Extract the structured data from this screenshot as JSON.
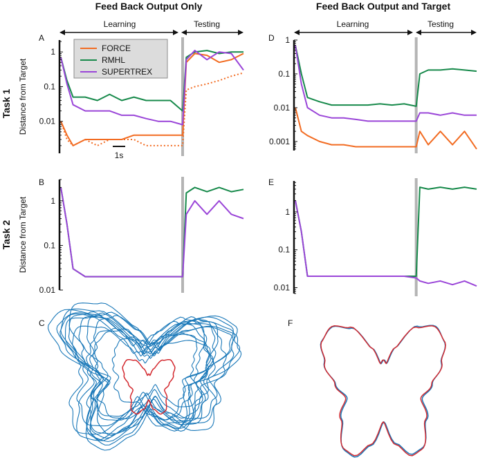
{
  "titles": {
    "left": "Feed Back Output Only",
    "right": "Feed Back Output and Target"
  },
  "rows": {
    "task1": "Task 1",
    "task2": "Task 2"
  },
  "phases": {
    "learning": "Learning",
    "testing": "Testing"
  },
  "ylabel": "Distance from Target",
  "scale_bar": "1s",
  "legend": [
    "FORCE",
    "RMHL",
    "SUPERTREX"
  ],
  "colors": {
    "FORCE": "#f26b21",
    "RMHL": "#16894a",
    "SUPERTREX": "#9a45d8",
    "target": "#d3282e",
    "output": "#1877b8",
    "divider": "#b4b4b4"
  },
  "chart_data": [
    {
      "panel": "A",
      "type": "line",
      "yscale": "log",
      "ylim": [
        0.0012,
        2.2
      ],
      "xlim": [
        0,
        15
      ],
      "yticks": [
        "1",
        "0.1",
        "0.01"
      ],
      "ytick_values": [
        1,
        0.1,
        0.01
      ],
      "phase_boundary": 10,
      "x": [
        0,
        0.5,
        1,
        2,
        3,
        4,
        5,
        6,
        7,
        8,
        9,
        10,
        10.3,
        11,
        12,
        13,
        14,
        15
      ],
      "series": [
        {
          "name": "FORCE",
          "values": [
            0.01,
            0.004,
            0.002,
            0.003,
            0.003,
            0.003,
            0.003,
            0.004,
            0.004,
            0.004,
            0.004,
            0.004,
            0.5,
            0.9,
            0.8,
            0.5,
            0.6,
            0.9
          ]
        },
        {
          "name": "FORCE",
          "style": "dotted",
          "values": [
            0.01,
            0.003,
            0.002,
            0.003,
            0.002,
            0.003,
            0.003,
            0.003,
            0.002,
            0.002,
            0.002,
            0.002,
            0.08,
            0.1,
            0.12,
            0.15,
            0.2,
            0.25
          ]
        },
        {
          "name": "RMHL",
          "values": [
            0.7,
            0.15,
            0.05,
            0.05,
            0.04,
            0.06,
            0.04,
            0.05,
            0.04,
            0.04,
            0.04,
            0.02,
            0.7,
            1.0,
            1.1,
            0.9,
            1.0,
            1.0
          ]
        },
        {
          "name": "SUPERTREX",
          "values": [
            0.7,
            0.12,
            0.03,
            0.02,
            0.02,
            0.02,
            0.015,
            0.015,
            0.012,
            0.01,
            0.01,
            0.008,
            0.6,
            1.1,
            0.6,
            1.0,
            0.9,
            0.3
          ]
        }
      ]
    },
    {
      "panel": "B",
      "type": "line",
      "yscale": "log",
      "ylim": [
        0.01,
        3
      ],
      "xlim": [
        0,
        15
      ],
      "yticks": [
        "1",
        "0.1",
        "0.01"
      ],
      "ytick_values": [
        1,
        0.1,
        0.01
      ],
      "phase_boundary": 10,
      "x": [
        0,
        0.5,
        1,
        2,
        3,
        4,
        5,
        6,
        7,
        8,
        9,
        10,
        10.3,
        11,
        12,
        13,
        14,
        15
      ],
      "series": [
        {
          "name": "RMHL",
          "values": [
            2,
            0.3,
            0.03,
            0.02,
            0.02,
            0.02,
            0.02,
            0.02,
            0.02,
            0.02,
            0.02,
            0.02,
            1.5,
            2,
            1.6,
            2,
            1.6,
            1.8
          ]
        },
        {
          "name": "SUPERTREX",
          "values": [
            2,
            0.3,
            0.03,
            0.02,
            0.02,
            0.02,
            0.02,
            0.02,
            0.02,
            0.02,
            0.02,
            0.02,
            0.5,
            1,
            0.5,
            1,
            0.5,
            0.4
          ]
        }
      ]
    },
    {
      "panel": "D",
      "type": "line",
      "yscale": "log",
      "ylim": [
        0.00054,
        1
      ],
      "xlim": [
        0,
        15
      ],
      "yticks": [
        "1",
        "0.1",
        "0.01",
        "0.001"
      ],
      "ytick_values": [
        1,
        0.1,
        0.01,
        0.001
      ],
      "phase_boundary": 10,
      "x": [
        0,
        0.5,
        1,
        2,
        3,
        4,
        5,
        6,
        7,
        8,
        9,
        10,
        10.3,
        11,
        12,
        13,
        14,
        15
      ],
      "series": [
        {
          "name": "FORCE",
          "values": [
            0.01,
            0.002,
            0.0015,
            0.001,
            0.0008,
            0.0008,
            0.0007,
            0.0007,
            0.0007,
            0.0007,
            0.0007,
            0.0007,
            0.002,
            0.0008,
            0.002,
            0.0008,
            0.002,
            0.0006
          ]
        },
        {
          "name": "RMHL",
          "values": [
            0.7,
            0.1,
            0.02,
            0.015,
            0.012,
            0.012,
            0.012,
            0.012,
            0.013,
            0.012,
            0.013,
            0.011,
            0.1,
            0.13,
            0.13,
            0.14,
            0.13,
            0.12
          ]
        },
        {
          "name": "SUPERTREX",
          "values": [
            0.7,
            0.05,
            0.01,
            0.006,
            0.005,
            0.005,
            0.0045,
            0.004,
            0.004,
            0.004,
            0.004,
            0.004,
            0.007,
            0.007,
            0.006,
            0.007,
            0.006,
            0.006
          ]
        }
      ]
    },
    {
      "panel": "E",
      "type": "line",
      "yscale": "log",
      "ylim": [
        0.007,
        6.6
      ],
      "xlim": [
        0,
        15
      ],
      "yticks": [
        "1",
        "0.1",
        "0.01"
      ],
      "ytick_values": [
        1,
        0.1,
        0.01
      ],
      "phase_boundary": 10,
      "x": [
        0,
        0.5,
        1,
        2,
        3,
        4,
        5,
        6,
        7,
        8,
        9,
        10,
        10.3,
        11,
        12,
        13,
        14,
        15
      ],
      "series": [
        {
          "name": "RMHL",
          "values": [
            2,
            0.3,
            0.02,
            0.02,
            0.02,
            0.02,
            0.02,
            0.02,
            0.02,
            0.02,
            0.02,
            0.02,
            4.5,
            4,
            4.5,
            4,
            4.5,
            4
          ]
        },
        {
          "name": "SUPERTREX",
          "values": [
            2,
            0.3,
            0.02,
            0.02,
            0.02,
            0.02,
            0.02,
            0.02,
            0.02,
            0.02,
            0.02,
            0.018,
            0.015,
            0.013,
            0.015,
            0.012,
            0.015,
            0.011
          ]
        }
      ]
    },
    {
      "panel": "C",
      "type": "trajectory",
      "series": [
        {
          "role": "target",
          "shape": "butterfly"
        },
        {
          "role": "output",
          "behavior": "chaotic loops"
        }
      ]
    },
    {
      "panel": "F",
      "type": "trajectory",
      "series": [
        {
          "role": "target",
          "shape": "butterfly"
        },
        {
          "role": "output",
          "behavior": "tracks target"
        }
      ]
    }
  ]
}
